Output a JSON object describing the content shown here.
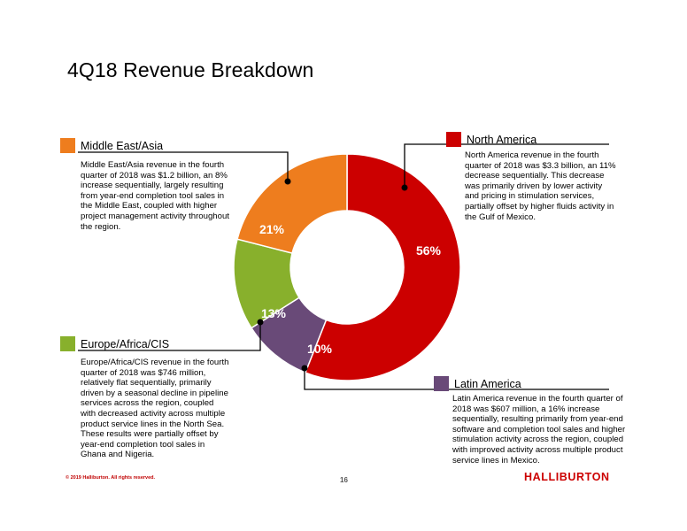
{
  "page": {
    "title": "4Q18 Revenue Breakdown",
    "footer_copyright": "© 2019 Halliburton. All rights reserved.",
    "page_number": "16",
    "logo_text": "HALLIBURTON"
  },
  "colors": {
    "north_america": "#cc0000",
    "middle_east_asia": "#ee7d1e",
    "europe_africa_cis": "#88b02c",
    "latin_america": "#694a78"
  },
  "regions": {
    "middle_east_asia": {
      "name": "Middle East/Asia",
      "description": "Middle East/Asia revenue in the fourth quarter of 2018 was $1.2 billion, an 8% increase sequentially, largely resulting from year-end completion tool sales in the Middle East, coupled with higher project management activity throughout the region."
    },
    "north_america": {
      "name": "North America",
      "description": "North America revenue in the fourth quarter of 2018 was $3.3 billion, an 11% decrease sequentially. This decrease was primarily driven by lower activity and pricing in stimulation services, partially offset by higher fluids activity in the Gulf of Mexico."
    },
    "europe_africa_cis": {
      "name": "Europe/Africa/CIS",
      "description": "Europe/Africa/CIS revenue in the fourth quarter of 2018 was $746 million, relatively flat sequentially, primarily driven by a seasonal decline in pipeline services across the region, coupled with decreased activity across multiple product service lines in the North Sea. These results were partially offset by year-end completion tool sales in Ghana and Nigeria."
    },
    "latin_america": {
      "name": "Latin America",
      "description": "Latin America revenue in the fourth quarter of 2018 was $607 million, a 16% increase sequentially, resulting primarily from year-end software and completion tool sales and higher stimulation activity across the region, coupled with improved activity across multiple product service lines in Mexico."
    }
  },
  "chart_data": {
    "type": "pie",
    "title": "4Q18 Revenue Breakdown",
    "donut": true,
    "slices": [
      {
        "label": "North America",
        "value": 56,
        "display": "56%",
        "color": "#cc0000"
      },
      {
        "label": "Latin America",
        "value": 10,
        "display": "10%",
        "color": "#694a78"
      },
      {
        "label": "Europe/Africa/CIS",
        "value": 13,
        "display": "13%",
        "color": "#88b02c"
      },
      {
        "label": "Middle East/Asia",
        "value": 21,
        "display": "21%",
        "color": "#ee7d1e"
      }
    ]
  }
}
